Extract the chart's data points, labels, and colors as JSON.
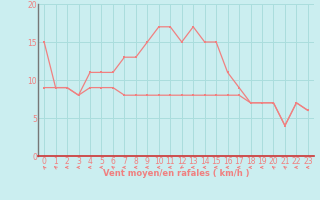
{
  "xlabel": "Vent moyen/en rafales ( km/h )",
  "bg_color": "#cbeef0",
  "grid_color": "#aadddd",
  "line_color": "#f08080",
  "spine_left_color": "#777777",
  "spine_bottom_color": "#cc3333",
  "x": [
    0,
    1,
    2,
    3,
    4,
    5,
    6,
    7,
    8,
    9,
    10,
    11,
    12,
    13,
    14,
    15,
    16,
    17,
    18,
    19,
    20,
    21,
    22,
    23
  ],
  "wind_mean": [
    9,
    9,
    9,
    8,
    9,
    9,
    9,
    8,
    8,
    8,
    8,
    8,
    8,
    8,
    8,
    8,
    8,
    8,
    7,
    7,
    7,
    4,
    7,
    6
  ],
  "wind_gust": [
    15,
    9,
    9,
    8,
    11,
    11,
    11,
    13,
    13,
    15,
    17,
    17,
    15,
    17,
    15,
    15,
    11,
    9,
    7,
    7,
    7,
    4,
    7,
    6
  ],
  "ylim": [
    0,
    20
  ],
  "xlim": [
    -0.5,
    23.5
  ],
  "yticks": [
    0,
    5,
    10,
    15,
    20
  ],
  "xticks": [
    0,
    1,
    2,
    3,
    4,
    5,
    6,
    7,
    8,
    9,
    10,
    11,
    12,
    13,
    14,
    15,
    16,
    17,
    18,
    19,
    20,
    21,
    22,
    23
  ],
  "arrow_dirs": [
    210,
    225,
    270,
    270,
    270,
    270,
    225,
    270,
    270,
    270,
    270,
    270,
    315,
    270,
    270,
    270,
    270,
    270,
    270,
    270,
    225,
    225,
    270,
    270
  ]
}
